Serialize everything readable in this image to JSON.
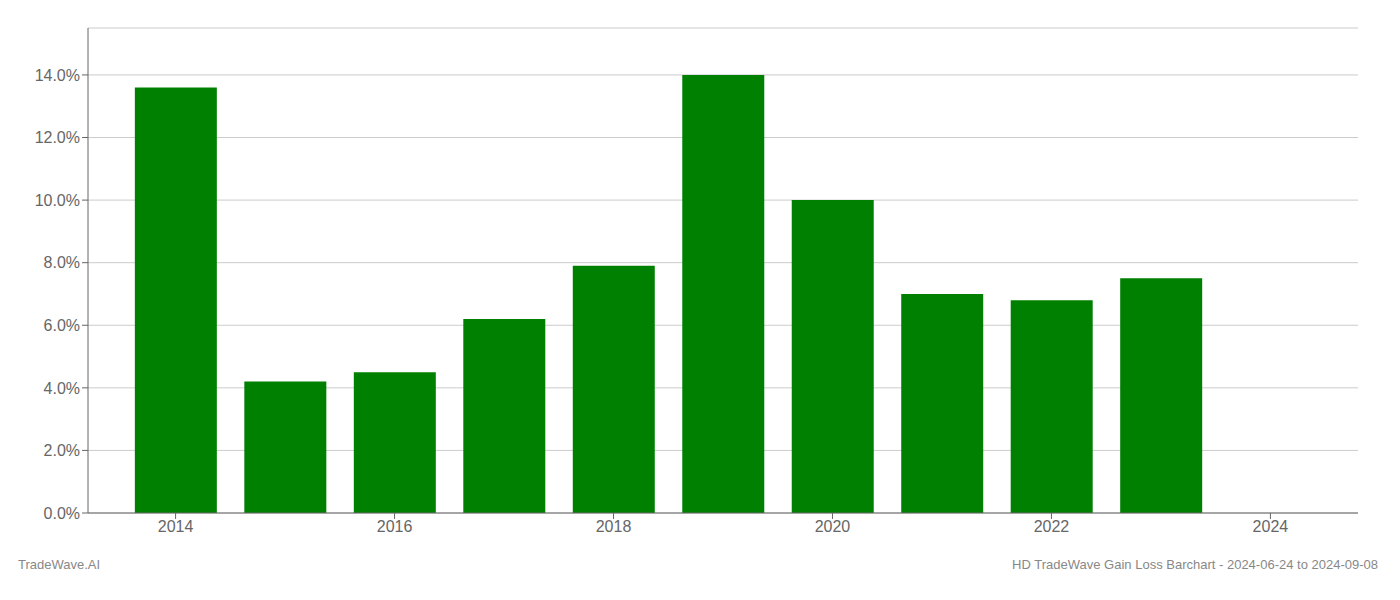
{
  "chart_data": {
    "type": "bar",
    "title": "HD TradeWave Gain Loss Barchart - 2024-06-24 to 2024-09-08",
    "annotations": [
      "TradeWave.AI"
    ],
    "x": [
      2014,
      2015,
      2016,
      2017,
      2018,
      2019,
      2020,
      2021,
      2022,
      2023
    ],
    "values": [
      0.136,
      0.042,
      0.045,
      0.062,
      0.079,
      0.14,
      0.1,
      0.07,
      0.068,
      0.075
    ],
    "color": "#008000",
    "xlim": [
      2013.2,
      2024.8
    ],
    "xticks": [
      2014,
      2016,
      2018,
      2020,
      2022,
      2024
    ],
    "ylim": [
      0,
      0.155
    ],
    "yticks": [
      {
        "value": 0.0,
        "label": "0.0%"
      },
      {
        "value": 0.02,
        "label": "2.0%"
      },
      {
        "value": 0.04,
        "label": "4.0%"
      },
      {
        "value": 0.06,
        "label": "6.0%"
      },
      {
        "value": 0.08,
        "label": "8.0%"
      },
      {
        "value": 0.1,
        "label": "10.0%"
      },
      {
        "value": 0.12,
        "label": "12.0%"
      },
      {
        "value": 0.14,
        "label": "14.0%"
      }
    ],
    "grid": true
  }
}
